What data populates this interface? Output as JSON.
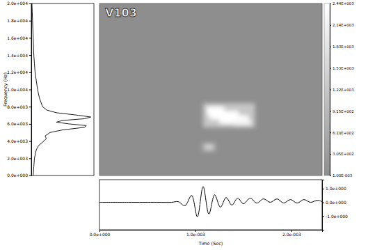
{
  "chart_data": [
    {
      "type": "line",
      "orientation": "horizontal",
      "x_label": "Frequency (Hz)",
      "x": [
        0,
        1000,
        2000,
        3000,
        3500,
        4000,
        4300,
        4600,
        5000,
        5300,
        5600,
        5800,
        6000,
        6200,
        6400,
        6600,
        6800,
        7000,
        7300,
        7600,
        8000,
        9000,
        10000,
        11000,
        12000,
        13000,
        14000,
        16000,
        18000,
        20000
      ],
      "values": [
        0.03,
        0.04,
        0.05,
        0.08,
        0.12,
        0.2,
        0.24,
        0.22,
        0.3,
        0.5,
        0.85,
        0.88,
        0.6,
        0.4,
        0.5,
        0.85,
        0.95,
        0.75,
        0.4,
        0.25,
        0.18,
        0.13,
        0.1,
        0.08,
        0.06,
        0.05,
        0.04,
        0.03,
        0.02,
        0.01
      ],
      "xlim": [
        0,
        20000
      ],
      "xticks": [
        {
          "value": 0,
          "label": "0.0e+000"
        },
        {
          "value": 2000,
          "label": "2.0e+003"
        },
        {
          "value": 4000,
          "label": "4.0e+003"
        },
        {
          "value": 6000,
          "label": "6.0e+003"
        },
        {
          "value": 8000,
          "label": "8.0e+003"
        },
        {
          "value": 10000,
          "label": "1.0e+004"
        },
        {
          "value": 12000,
          "label": "1.2e+004"
        },
        {
          "value": 14000,
          "label": "1.4e+004"
        },
        {
          "value": 16000,
          "label": "1.6e+004"
        },
        {
          "value": 18000,
          "label": "1.8e+004"
        },
        {
          "value": 20000,
          "label": "2.0e+004"
        }
      ],
      "ylim": [
        0,
        1
      ],
      "tick_labels": "x"
    },
    {
      "type": "heatmap",
      "title": "V103",
      "xlim": [
        0,
        0.00232
      ],
      "ylim": [
        0,
        20000
      ],
      "tick_labels": false,
      "cells": [
        {
          "x": [
            0.00108,
            0.00162
          ],
          "y": [
            5600,
            8400
          ],
          "value": 1200
        },
        {
          "x": [
            0.00107,
            0.00121
          ],
          "y": [
            2800,
            3800
          ],
          "value": 700
        },
        {
          "x": [
            0.00112,
            0.0013
          ],
          "y": [
            7000,
            8000
          ],
          "value": 2440
        },
        {
          "x": [
            0.00115,
            0.00145
          ],
          "y": [
            6500,
            7500
          ],
          "value": 2440
        },
        {
          "x": [
            0.00125,
            0.00155
          ],
          "y": [
            6000,
            7000
          ],
          "value": 2440
        },
        {
          "x": [
            0.0014,
            0.00158
          ],
          "y": [
            5800,
            6500
          ],
          "value": 2200
        },
        {
          "x": [
            0.0011,
            0.00118
          ],
          "y": [
            3000,
            3600
          ],
          "value": 1500
        }
      ],
      "colorbar": {
        "range": [
          0.001,
          2440
        ],
        "ticks": [
          {
            "value": 0.001,
            "label": "1.00E-003"
          },
          {
            "value": 305,
            "label": "3.05E+002"
          },
          {
            "value": 610,
            "label": "6.10E+002"
          },
          {
            "value": 915,
            "label": "9.15E+002"
          },
          {
            "value": 1220,
            "label": "1.22E+003"
          },
          {
            "value": 1525,
            "label": "1.53E+003"
          },
          {
            "value": 1830,
            "label": "1.83E+003"
          },
          {
            "value": 2135,
            "label": "2.14E+003"
          },
          {
            "value": 2440,
            "label": "2.44E+003"
          }
        ]
      }
    },
    {
      "type": "line",
      "x_label": "Time (Sec)",
      "x": [
        0,
        0.0003,
        0.0006,
        0.00075,
        0.00082,
        0.00089,
        0.00096,
        0.00102,
        0.00108,
        0.00114,
        0.0012,
        0.00126,
        0.00132,
        0.00138,
        0.00144,
        0.0015,
        0.00157,
        0.00164,
        0.00171,
        0.00178,
        0.00185,
        0.00192,
        0.00199,
        0.00206,
        0.00213,
        0.0022,
        0.00227,
        0.00232
      ],
      "values": [
        0,
        0,
        0,
        0,
        0.05,
        -0.25,
        0.5,
        -1.05,
        1.15,
        -0.85,
        0.55,
        -0.35,
        0.35,
        -0.2,
        0.3,
        -0.1,
        0.3,
        -0.05,
        0.25,
        0,
        0.25,
        -0.05,
        0.2,
        -0.05,
        0.2,
        0,
        0.15,
        0.05
      ],
      "xlim": [
        0,
        0.00232
      ],
      "xticks": [
        {
          "value": 0,
          "label": "0.0e+000"
        },
        {
          "value": 0.001,
          "label": "1.0e-003"
        },
        {
          "value": 0.002,
          "label": "2.0e-003"
        }
      ],
      "ylim": [
        -2,
        1.65
      ],
      "yticks": [
        {
          "value": 1,
          "label": "1.0e+000"
        },
        {
          "value": 0,
          "label": "0.0e+000"
        },
        {
          "value": -1,
          "label": "-1.0e+000"
        }
      ]
    }
  ]
}
